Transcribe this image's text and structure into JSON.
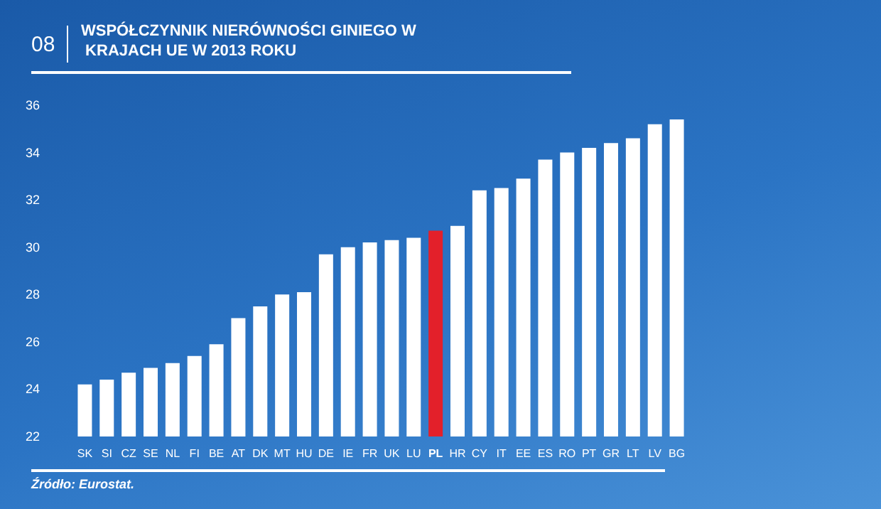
{
  "chart_data": {
    "type": "bar",
    "title": "WSPÓŁCZYNNIK NIERÓWNOŚCI GINIEGO W KRAJACH UE W 2013 ROKU",
    "categories": [
      "SK",
      "SI",
      "CZ",
      "SE",
      "NL",
      "FI",
      "BE",
      "AT",
      "DK",
      "MT",
      "HU",
      "DE",
      "IE",
      "FR",
      "UK",
      "LU",
      "PL",
      "HR",
      "CY",
      "IT",
      "EE",
      "ES",
      "RO",
      "PT",
      "GR",
      "LT",
      "LV",
      "BG"
    ],
    "values": [
      24.2,
      24.4,
      24.7,
      24.9,
      25.1,
      25.4,
      25.9,
      27.0,
      27.5,
      28.0,
      28.1,
      29.7,
      30.0,
      30.2,
      30.3,
      30.4,
      30.7,
      30.9,
      32.4,
      32.5,
      32.9,
      33.7,
      34.0,
      34.2,
      34.4,
      34.6,
      35.2,
      35.4
    ],
    "colors": [
      "#ffffff",
      "#ffffff",
      "#ffffff",
      "#ffffff",
      "#ffffff",
      "#ffffff",
      "#ffffff",
      "#ffffff",
      "#ffffff",
      "#ffffff",
      "#ffffff",
      "#ffffff",
      "#ffffff",
      "#ffffff",
      "#ffffff",
      "#ffffff",
      "#e3202a",
      "#ffffff",
      "#ffffff",
      "#ffffff",
      "#ffffff",
      "#ffffff",
      "#ffffff",
      "#ffffff",
      "#ffffff",
      "#ffffff",
      "#ffffff",
      "#ffffff"
    ],
    "ylim": [
      22,
      36
    ],
    "yticks": [
      22,
      24,
      26,
      28,
      30,
      32,
      34,
      36
    ],
    "grid": false,
    "annotations": [
      "08",
      "Źródło: Eurostat."
    ]
  }
}
